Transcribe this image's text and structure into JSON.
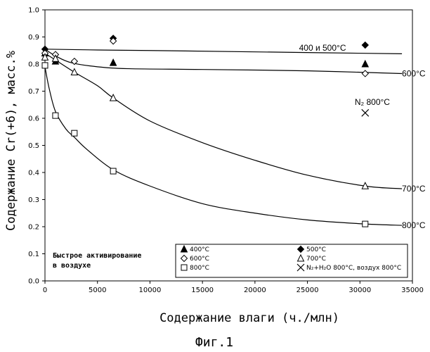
{
  "chart_data": {
    "type": "scatter",
    "title": "",
    "xlabel": "Содержание влаги (ч./млн)",
    "ylabel": "Содержание Cr(+6), масс.%",
    "caption": "Фиг.1",
    "xlim": [
      0,
      35000
    ],
    "ylim": [
      0,
      1.0
    ],
    "xticks": [
      "0",
      "5000",
      "10000",
      "15000",
      "20000",
      "25000",
      "30000",
      "35000"
    ],
    "yticks": [
      "0.0",
      "0.1",
      "0.2",
      "0.3",
      "0.4",
      "0.5",
      "0.6",
      "0.7",
      "0.8",
      "0.9",
      "1.0"
    ],
    "grid": false,
    "legend_position": "bottom-right",
    "series": [
      {
        "name": "400°C",
        "marker": "triangle-filled",
        "points": [
          [
            0,
            0.84
          ],
          [
            1000,
            0.81
          ],
          [
            6500,
            0.805
          ],
          [
            30500,
            0.8
          ]
        ]
      },
      {
        "name": "500°C",
        "marker": "diamond-filled",
        "points": [
          [
            0,
            0.855
          ],
          [
            6500,
            0.895
          ],
          [
            30500,
            0.87
          ]
        ]
      },
      {
        "name": "600°C",
        "marker": "diamond-open",
        "points": [
          [
            0,
            0.84
          ],
          [
            1000,
            0.835
          ],
          [
            2800,
            0.81
          ],
          [
            6500,
            0.885
          ],
          [
            30500,
            0.765
          ]
        ]
      },
      {
        "name": "700°C",
        "marker": "triangle-open",
        "points": [
          [
            0,
            0.825
          ],
          [
            1000,
            0.82
          ],
          [
            2800,
            0.77
          ],
          [
            6500,
            0.675
          ],
          [
            30500,
            0.35
          ]
        ]
      },
      {
        "name": "800°C",
        "marker": "square-open",
        "points": [
          [
            0,
            0.795
          ],
          [
            1000,
            0.61
          ],
          [
            2800,
            0.545
          ],
          [
            6500,
            0.405
          ],
          [
            30500,
            0.21
          ]
        ]
      },
      {
        "name": "N₂+H₂O 800°C, воздух 800°C",
        "marker": "cross",
        "points": [
          [
            30500,
            0.62
          ]
        ]
      }
    ],
    "fit_lines": [
      {
        "label": "400 и 500°C",
        "points": [
          [
            0,
            0.855
          ],
          [
            5000,
            0.852
          ],
          [
            10000,
            0.85
          ],
          [
            20000,
            0.845
          ],
          [
            34000,
            0.838
          ]
        ]
      },
      {
        "label": "600°C",
        "points": [
          [
            0,
            0.855
          ],
          [
            1000,
            0.83
          ],
          [
            2500,
            0.805
          ],
          [
            5000,
            0.79
          ],
          [
            8000,
            0.783
          ],
          [
            15000,
            0.78
          ],
          [
            25000,
            0.775
          ],
          [
            34000,
            0.765
          ]
        ]
      },
      {
        "label": "700°C",
        "points": [
          [
            0,
            0.84
          ],
          [
            1000,
            0.815
          ],
          [
            2800,
            0.77
          ],
          [
            5000,
            0.72
          ],
          [
            6500,
            0.675
          ],
          [
            10000,
            0.59
          ],
          [
            15000,
            0.51
          ],
          [
            20000,
            0.445
          ],
          [
            25000,
            0.39
          ],
          [
            30500,
            0.35
          ],
          [
            34000,
            0.34
          ]
        ]
      },
      {
        "label": "800°C",
        "points": [
          [
            0,
            0.79
          ],
          [
            400,
            0.71
          ],
          [
            1000,
            0.625
          ],
          [
            2000,
            0.56
          ],
          [
            2800,
            0.53
          ],
          [
            4000,
            0.485
          ],
          [
            6500,
            0.41
          ],
          [
            10000,
            0.35
          ],
          [
            15000,
            0.285
          ],
          [
            20000,
            0.25
          ],
          [
            25000,
            0.225
          ],
          [
            30500,
            0.21
          ],
          [
            34000,
            0.205
          ]
        ]
      }
    ],
    "annotations": [
      {
        "text": "400 и 500°C",
        "x": 24200,
        "y": 0.86
      },
      {
        "text": "600°C",
        "x": 34000,
        "y": 0.765
      },
      {
        "text": "N₂ 800°C",
        "x": 29500,
        "y": 0.66
      },
      {
        "text": "700°C",
        "x": 34000,
        "y": 0.34
      },
      {
        "text": "800°C",
        "x": 34000,
        "y": 0.205
      }
    ],
    "note": [
      "Быстрое активирование",
      "в воздухе"
    ]
  }
}
